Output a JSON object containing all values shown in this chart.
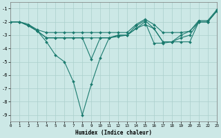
{
  "xlabel": "Humidex (Indice chaleur)",
  "background_color": "#cce8e6",
  "grid_color": "#aacfcc",
  "line_color": "#1a7a6e",
  "xlim": [
    0,
    23
  ],
  "ylim": [
    -9.5,
    -0.5
  ],
  "yticks": [
    -9,
    -8,
    -7,
    -6,
    -5,
    -4,
    -3,
    -2,
    -1
  ],
  "xticks": [
    0,
    1,
    2,
    3,
    4,
    5,
    6,
    7,
    8,
    9,
    10,
    11,
    12,
    13,
    14,
    15,
    16,
    17,
    18,
    19,
    20,
    21,
    22,
    23
  ],
  "lines": [
    {
      "x": [
        0,
        1,
        2,
        3,
        4,
        5,
        6,
        7,
        8,
        9,
        10,
        11,
        12,
        13,
        14,
        15,
        16,
        17,
        18,
        19,
        20,
        21,
        22,
        23
      ],
      "y": [
        -2.0,
        -2.0,
        -2.3,
        -2.7,
        -3.5,
        -4.5,
        -5.0,
        -6.5,
        -9.0,
        -6.7,
        -4.7,
        -3.2,
        -3.1,
        -3.0,
        -2.5,
        -2.2,
        -2.5,
        -3.5,
        -3.5,
        -3.0,
        -2.7,
        -2.0,
        -2.0,
        -1.2
      ]
    },
    {
      "x": [
        0,
        1,
        2,
        3,
        4,
        5,
        6,
        7,
        8,
        9,
        10,
        11,
        12,
        13,
        14,
        15,
        16,
        17,
        18,
        19,
        20,
        21,
        22,
        23
      ],
      "y": [
        -2.0,
        -2.0,
        -2.3,
        -2.7,
        -3.2,
        -3.2,
        -3.2,
        -3.2,
        -3.2,
        -4.8,
        -3.2,
        -3.2,
        -3.0,
        -3.0,
        -2.3,
        -1.9,
        -2.5,
        -3.5,
        -3.5,
        -3.2,
        -3.0,
        -2.0,
        -2.0,
        -1.2
      ]
    },
    {
      "x": [
        0,
        1,
        2,
        3,
        4,
        5,
        6,
        7,
        8,
        9,
        10,
        11,
        12,
        13,
        14,
        15,
        16,
        17,
        18,
        19,
        20,
        21,
        22,
        23
      ],
      "y": [
        -2.0,
        -2.0,
        -2.2,
        -2.6,
        -2.8,
        -2.8,
        -2.8,
        -2.8,
        -2.8,
        -2.8,
        -2.8,
        -2.8,
        -2.8,
        -2.8,
        -2.2,
        -1.8,
        -2.2,
        -2.8,
        -2.8,
        -2.8,
        -2.7,
        -1.9,
        -1.9,
        -1.1
      ]
    },
    {
      "x": [
        0,
        1,
        2,
        3,
        4,
        5,
        6,
        7,
        8,
        9,
        10,
        11,
        12,
        13,
        14,
        15,
        16,
        17,
        18,
        19,
        20,
        21,
        22,
        23
      ],
      "y": [
        -2.0,
        -2.0,
        -2.2,
        -2.7,
        -3.2,
        -3.2,
        -3.2,
        -3.2,
        -3.2,
        -3.2,
        -3.2,
        -3.2,
        -3.0,
        -3.0,
        -2.5,
        -2.0,
        -3.6,
        -3.6,
        -3.5,
        -3.5,
        -3.5,
        -2.0,
        -2.0,
        -1.2
      ]
    }
  ]
}
